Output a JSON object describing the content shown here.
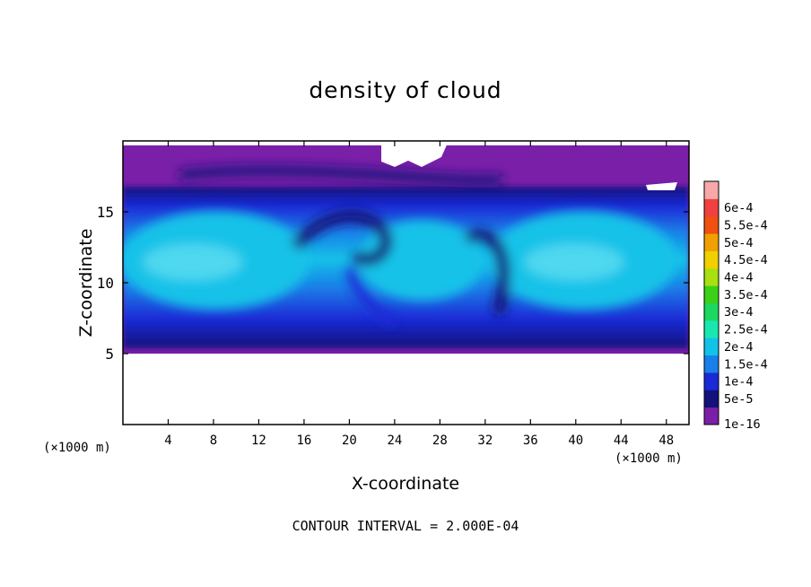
{
  "chart_data": {
    "type": "heatmap",
    "title": "density of cloud",
    "xlabel": "X-coordinate",
    "ylabel": "Z-coordinate",
    "x_unit": "(×1000 m)",
    "footer": "CONTOUR INTERVAL = 2.000E-04",
    "xlim": [
      0,
      50
    ],
    "ylim": [
      0,
      20
    ],
    "x_ticks": [
      "4",
      "8",
      "12",
      "16",
      "20",
      "24",
      "28",
      "32",
      "36",
      "40",
      "44",
      "48"
    ],
    "y_ticks": [
      "5",
      "10",
      "15"
    ],
    "colorbar": {
      "levels": [
        "1e-16",
        "5e-5",
        "1e-4",
        "1.5e-4",
        "2e-4",
        "2.5e-4",
        "3e-4",
        "3.5e-4",
        "4e-4",
        "4.5e-4",
        "5e-4",
        "5.5e-4",
        "6e-4"
      ],
      "colors": [
        "#7a1fa8",
        "#12127a",
        "#1a2ad6",
        "#1a7fe8",
        "#13c2e8",
        "#18e8b0",
        "#1cd860",
        "#3cd018",
        "#a8e010",
        "#f0d000",
        "#f0a000",
        "#f05010",
        "#f04040",
        "#f8a8a8"
      ]
    },
    "cloud_layer": {
      "base_z": 5,
      "top_z": 19.6,
      "core_min_z": 7,
      "core_max_z": 16,
      "core_max_density": "1.5e-4 to 2e-4",
      "clear_regions": [
        "above z≈18 near x≈22–27",
        "below z≈5"
      ]
    }
  }
}
